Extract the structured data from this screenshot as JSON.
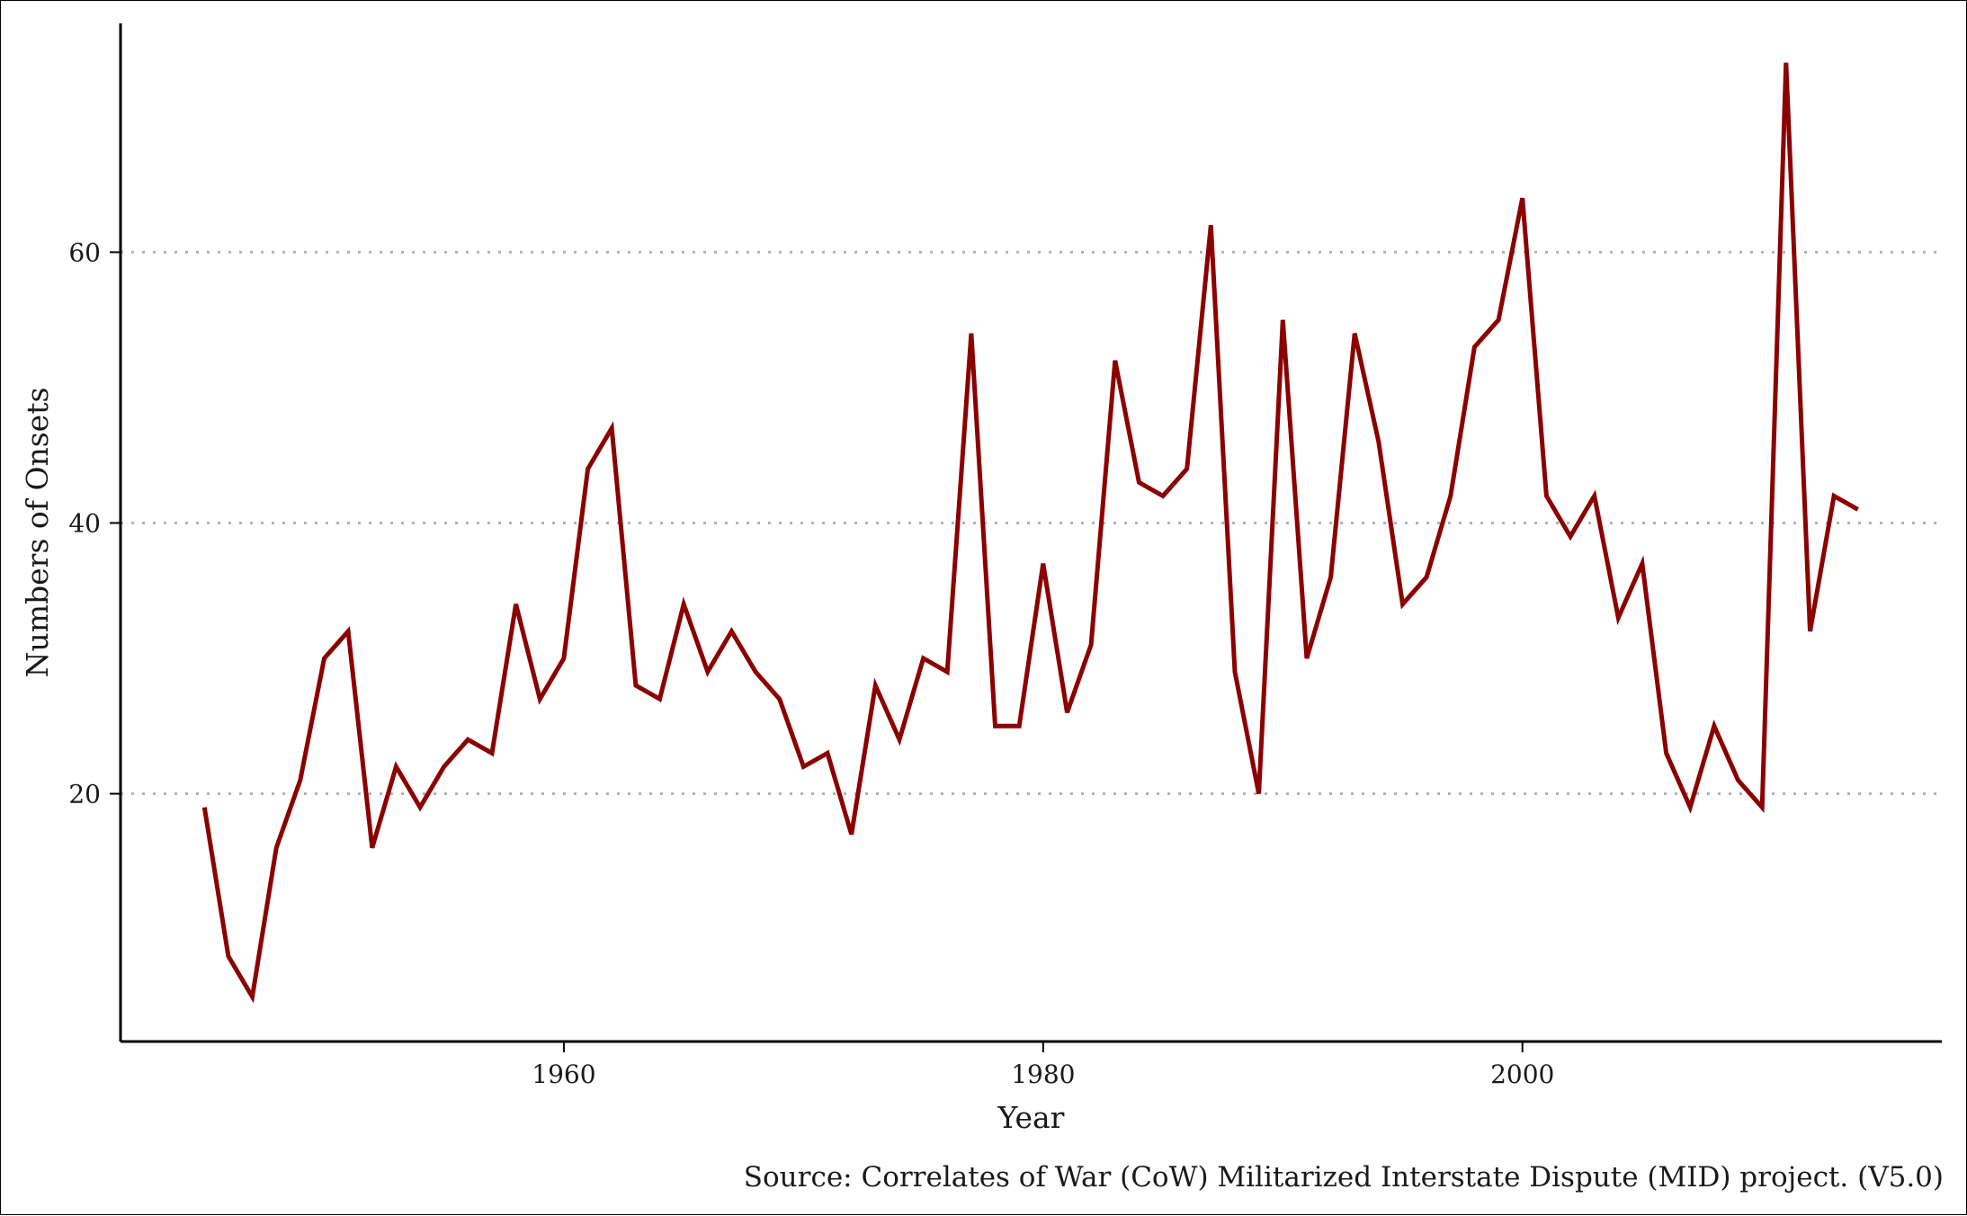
{
  "chart_data": {
    "type": "line",
    "title": "",
    "xlabel": "Year",
    "ylabel": "Numbers of Onsets",
    "caption": "Source: Correlates of War (CoW) Militarized Interstate Dispute (MID) project. (V5.0)",
    "xlim": [
      1941.5,
      2017.5
    ],
    "ylim": [
      1.7,
      76.9
    ],
    "x_ticks": [
      1960,
      1980,
      2000
    ],
    "y_ticks": [
      20,
      40,
      60
    ],
    "grid": "horizontal dotted",
    "legend": "none",
    "line_color": "#8b0000",
    "grid_color": "#b3b3b3",
    "series": [
      {
        "x": [
          1945,
          1946,
          1947,
          1948,
          1949,
          1950,
          1951,
          1952,
          1953,
          1954,
          1955,
          1956,
          1957,
          1958,
          1959,
          1960,
          1961,
          1962,
          1963,
          1964,
          1965,
          1966,
          1967,
          1968,
          1969,
          1970,
          1971,
          1972,
          1973,
          1974,
          1975,
          1976,
          1977,
          1978,
          1979,
          1980,
          1981,
          1982,
          1983,
          1984,
          1985,
          1986,
          1987,
          1988,
          1989,
          1990,
          1991,
          1992,
          1993,
          1994,
          1995,
          1996,
          1997,
          1998,
          1999,
          2000,
          2001,
          2002,
          2003,
          2004,
          2005,
          2006,
          2007,
          2008,
          2009,
          2010,
          2011,
          2012,
          2013,
          2014
        ],
        "values": [
          19,
          8,
          5,
          16,
          21,
          30,
          32,
          16,
          22,
          19,
          22,
          24,
          23,
          34,
          27,
          30,
          44,
          47,
          28,
          27,
          34,
          29,
          32,
          29,
          27,
          22,
          23,
          17,
          28,
          24,
          30,
          29,
          54,
          25,
          25,
          37,
          26,
          31,
          52,
          43,
          42,
          44,
          62,
          29,
          20,
          55,
          30,
          36,
          54,
          46,
          34,
          36,
          42,
          53,
          55,
          64,
          42,
          39,
          42,
          33,
          37,
          23,
          19,
          25,
          21,
          19,
          74,
          32,
          42,
          41
        ]
      }
    ]
  }
}
